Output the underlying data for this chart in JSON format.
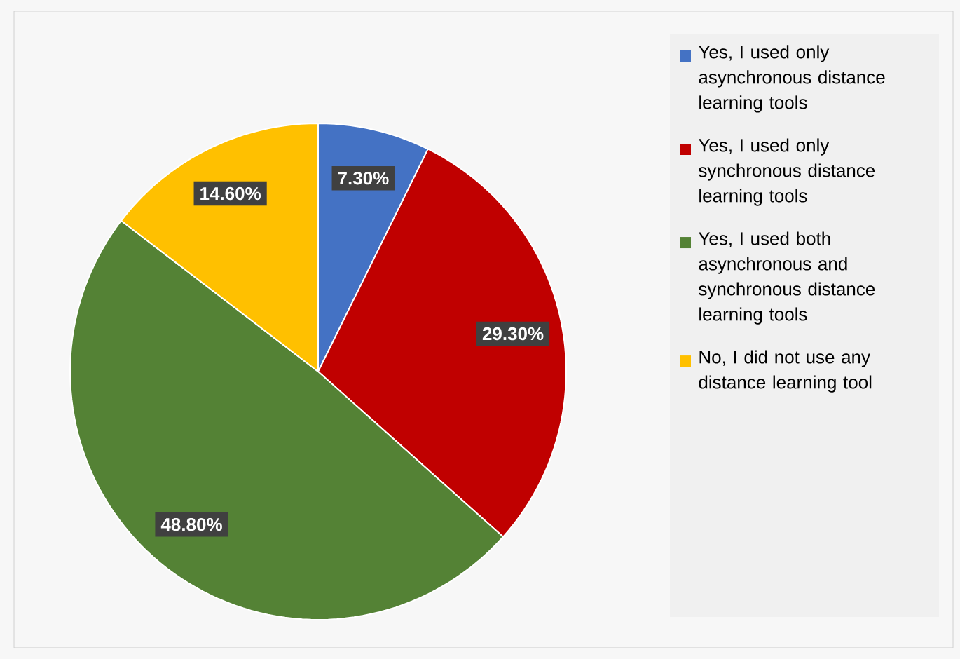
{
  "chart_data": {
    "type": "pie",
    "categories": [
      "Yes, I used only asynchronous distance learning tools",
      "Yes, I used only synchronous distance learning tools",
      "Yes, I used both asynchronous and synchronous distance learning tools",
      "No, I did not use any distance learning tool"
    ],
    "values": [
      7.3,
      29.3,
      48.8,
      14.6
    ],
    "colors": [
      "#4472c4",
      "#c00000",
      "#548235",
      "#ffc000"
    ],
    "value_labels": [
      "7.30%",
      "29.30%",
      "48.80%",
      "14.60%"
    ],
    "legend": "right"
  }
}
